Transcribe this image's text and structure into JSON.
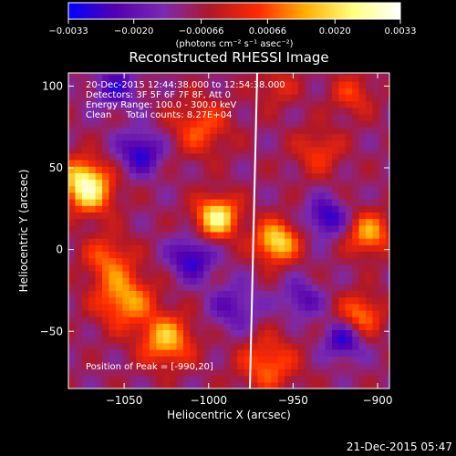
{
  "chart_data": {
    "type": "heatmap",
    "title": "Reconstructed RHESSI Image",
    "xlabel": "Heliocentric X (arcsec)",
    "ylabel": "Heliocentric Y (arcsec)",
    "xlim": [
      -1083,
      -893
    ],
    "ylim": [
      -85,
      108
    ],
    "x_ticks": [
      -1050,
      -1000,
      -950,
      -900
    ],
    "y_ticks": [
      -50,
      0,
      50,
      100
    ],
    "x_tick_labels": [
      "−1050",
      "−1000",
      "−950",
      "−900"
    ],
    "y_tick_labels": [
      "−50",
      "0",
      "50",
      "100"
    ],
    "colorbar": {
      "range": [
        -0.0033,
        0.0033
      ],
      "ticks": [
        -0.0033,
        -0.002,
        -0.00066,
        0.00066,
        0.002,
        0.0033
      ],
      "tick_labels": [
        "−0.0033",
        "−0.0020",
        "−0.00066",
        "0.00066",
        "0.0020",
        "0.0033"
      ],
      "unit_label": "(photons cm⁻² s⁻¹ asec⁻²)",
      "colors": [
        "#0000ff",
        "#5500b0",
        "#7a2ab0",
        "#b01828",
        "#ff2a00",
        "#ffb000",
        "#ffff80",
        "#ffffff"
      ]
    },
    "peak": {
      "x": -990,
      "y": 20
    },
    "blobs": [
      {
        "x": -995,
        "y": 20,
        "v": 0.0033,
        "r": 9
      },
      {
        "x": -960,
        "y": 5,
        "v": 0.003,
        "r": 9
      },
      {
        "x": -1070,
        "y": 35,
        "v": 0.0025,
        "r": 10
      },
      {
        "x": -1075,
        "y": 45,
        "v": 0.002,
        "r": 9
      },
      {
        "x": -1050,
        "y": -30,
        "v": 0.0023,
        "r": 12
      },
      {
        "x": -1025,
        "y": -55,
        "v": 0.0025,
        "r": 11
      },
      {
        "x": -1060,
        "y": -5,
        "v": 0.0016,
        "r": 10
      },
      {
        "x": -905,
        "y": 10,
        "v": 0.0023,
        "r": 9
      },
      {
        "x": -910,
        "y": -40,
        "v": 0.002,
        "r": 9
      },
      {
        "x": -965,
        "y": -70,
        "v": 0.0018,
        "r": 12
      },
      {
        "x": -1005,
        "y": 75,
        "v": 0.0016,
        "r": 12
      },
      {
        "x": -935,
        "y": 60,
        "v": 0.0013,
        "r": 10
      },
      {
        "x": -915,
        "y": 95,
        "v": 0.0013,
        "r": 9
      },
      {
        "x": -960,
        "y": 100,
        "v": 0.001,
        "r": 9
      },
      {
        "x": -1040,
        "y": 60,
        "v": -0.002,
        "r": 9
      },
      {
        "x": -1010,
        "y": -5,
        "v": -0.002,
        "r": 9
      },
      {
        "x": -930,
        "y": 20,
        "v": -0.002,
        "r": 8
      },
      {
        "x": -1055,
        "y": 100,
        "v": -0.0016,
        "r": 9
      },
      {
        "x": -920,
        "y": -55,
        "v": -0.002,
        "r": 8
      },
      {
        "x": -985,
        "y": -35,
        "v": -0.0013,
        "r": 10
      },
      {
        "x": -945,
        "y": -30,
        "v": -0.0014,
        "r": 8
      }
    ]
  },
  "annotations": {
    "time_range": "20-Dec-2015 12:44:38.000 to 12:54:38.000",
    "detectors": "Detectors: 3F 5F 6F 7F 8F, Att 0",
    "energy_range": "Energy Range: 100.0 - 300.0 keV",
    "algorithm": "Clean     Total counts: 8.27E+04",
    "peak_text": "Position of Peak = [-990,20]"
  },
  "footer": {
    "timestamp": "21-Dec-2015 05:47"
  }
}
